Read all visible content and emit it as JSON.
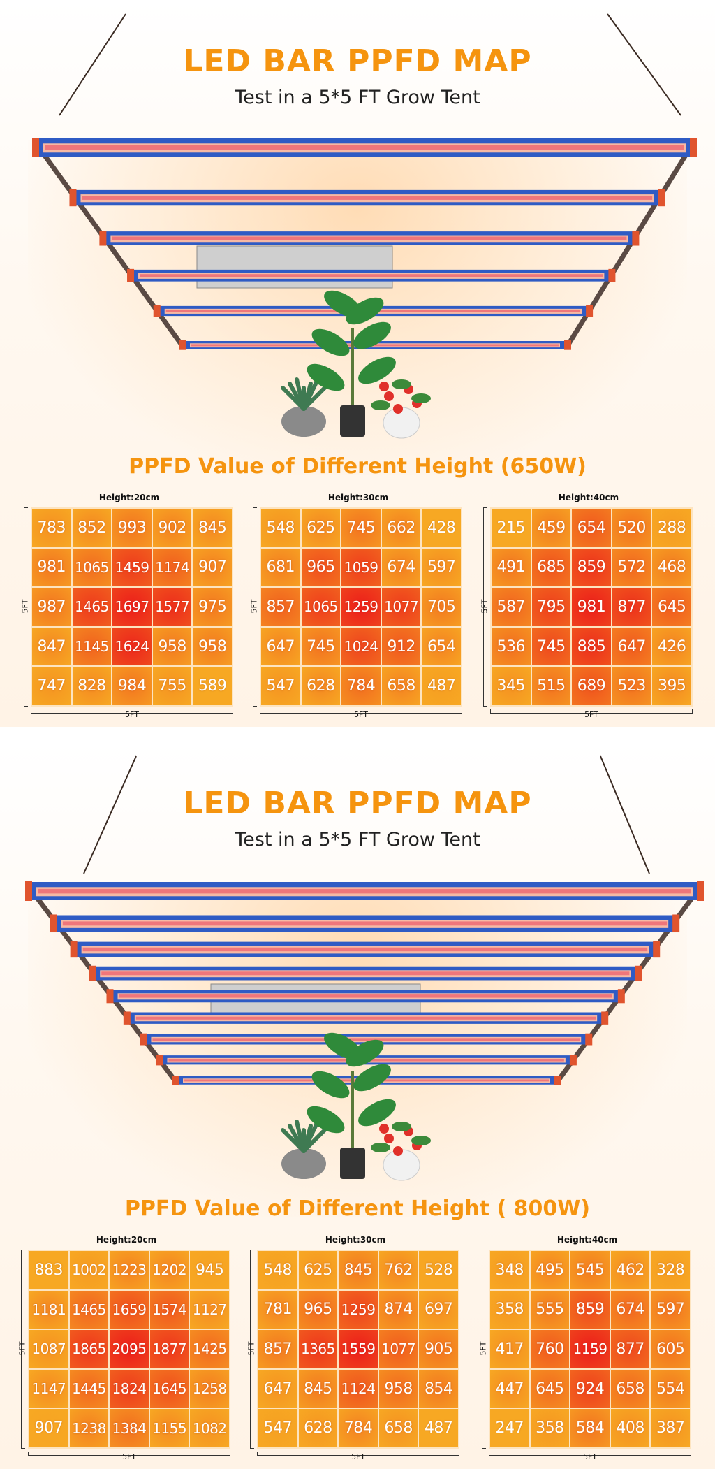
{
  "panels": [
    {
      "title": "LED BAR PPFD MAP",
      "subtitle": "Test in a 5*5 FT Grow Tent",
      "section_title": "PPFD Value of Different Height (650W)"
    },
    {
      "title": "LED BAR PPFD MAP",
      "subtitle": "Test in a 5*5 FT Grow Tent",
      "section_title": "PPFD Value of Different Height ( 800W)"
    }
  ],
  "chart_data": [
    {
      "type": "heatmap",
      "title": "Height:20cm",
      "xlabel": "5FT",
      "ylabel": "5FT",
      "values": [
        [
          783,
          852,
          993,
          902,
          845
        ],
        [
          981,
          1065,
          1459,
          1174,
          907
        ],
        [
          987,
          1465,
          1697,
          1577,
          975
        ],
        [
          847,
          1145,
          1624,
          958,
          958
        ],
        [
          747,
          828,
          984,
          755,
          589
        ]
      ]
    },
    {
      "type": "heatmap",
      "title": "Height:30cm",
      "xlabel": "5FT",
      "ylabel": "5FT",
      "values": [
        [
          548,
          625,
          745,
          662,
          428
        ],
        [
          681,
          965,
          1059,
          674,
          597
        ],
        [
          857,
          1065,
          1259,
          1077,
          705
        ],
        [
          647,
          745,
          1024,
          912,
          654
        ],
        [
          547,
          628,
          784,
          658,
          487
        ]
      ]
    },
    {
      "type": "heatmap",
      "title": "Height:40cm",
      "xlabel": "5FT",
      "ylabel": "5FT",
      "values": [
        [
          215,
          459,
          654,
          520,
          288
        ],
        [
          491,
          685,
          859,
          572,
          468
        ],
        [
          587,
          795,
          981,
          877,
          645
        ],
        [
          536,
          745,
          885,
          647,
          426
        ],
        [
          345,
          515,
          689,
          523,
          395
        ]
      ]
    },
    {
      "type": "heatmap",
      "title": "Height:20cm",
      "xlabel": "5FT",
      "ylabel": "5FT",
      "values": [
        [
          883,
          1002,
          1223,
          1202,
          945
        ],
        [
          1181,
          1465,
          1659,
          1574,
          1127
        ],
        [
          1087,
          1865,
          2095,
          1877,
          1425
        ],
        [
          1147,
          1445,
          1824,
          1645,
          1258
        ],
        [
          907,
          1238,
          1384,
          1155,
          1082
        ]
      ]
    },
    {
      "type": "heatmap",
      "title": "Height:30cm",
      "xlabel": "5FT",
      "ylabel": "5FT",
      "values": [
        [
          548,
          625,
          845,
          762,
          528
        ],
        [
          781,
          965,
          1259,
          874,
          697
        ],
        [
          857,
          1365,
          1559,
          1077,
          905
        ],
        [
          647,
          845,
          1124,
          958,
          854
        ],
        [
          547,
          628,
          784,
          658,
          487
        ]
      ]
    },
    {
      "type": "heatmap",
      "title": "Height:40cm",
      "xlabel": "5FT",
      "ylabel": "5FT",
      "values": [
        [
          348,
          495,
          545,
          462,
          328
        ],
        [
          358,
          555,
          859,
          674,
          597
        ],
        [
          417,
          760,
          1159,
          877,
          605
        ],
        [
          447,
          645,
          924,
          658,
          554
        ],
        [
          247,
          358,
          584,
          408,
          387
        ]
      ]
    }
  ],
  "colors": {
    "title": "#f5940f",
    "cell_low": "#f7a823",
    "cell_high": "#ec1e1a",
    "bar_frame": "#2f5bc4",
    "bar_end_cap": "#e0542e"
  }
}
